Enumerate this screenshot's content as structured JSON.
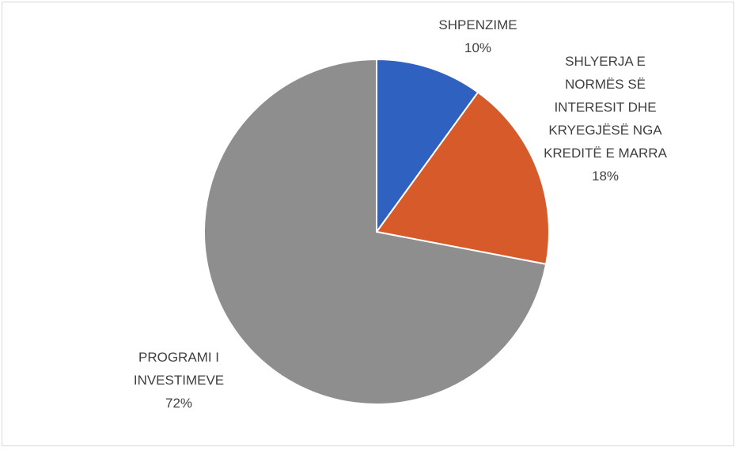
{
  "chart_data": {
    "type": "pie",
    "categories": [
      "SHPENZIME",
      "SHLYERJA E NORMËS SË INTERESIT DHE KRYEGJËSË NGA KREDITË E MARRA",
      "PROGRAMI I INVESTIMEVE"
    ],
    "values": [
      10,
      18,
      72
    ],
    "value_labels": [
      "10%",
      "18%",
      "72%"
    ],
    "colors": [
      "#2f62c0",
      "#d65a2a",
      "#8e8e8e"
    ]
  }
}
